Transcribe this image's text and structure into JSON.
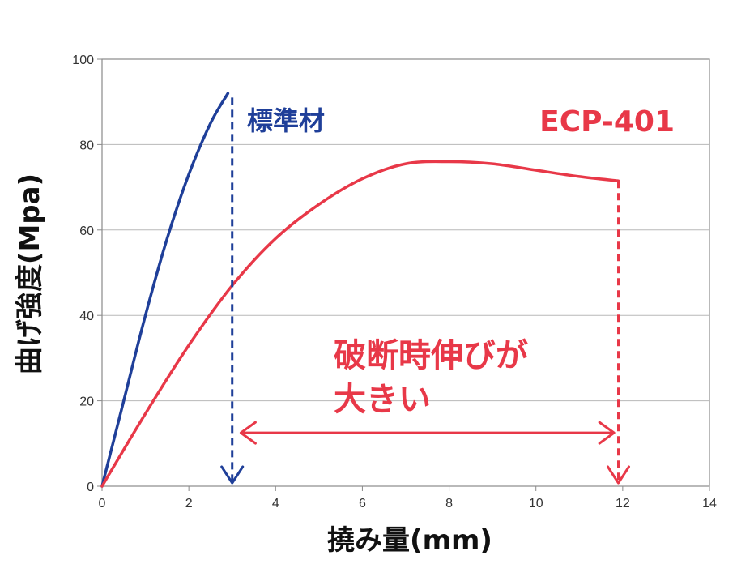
{
  "chart_data": {
    "type": "line",
    "xlabel": "撓み量(mm)",
    "ylabel": "曲げ強度(Mpa)",
    "xlim": [
      0,
      14
    ],
    "ylim": [
      0,
      100
    ],
    "xticks": [
      0,
      2,
      4,
      6,
      8,
      10,
      12,
      14
    ],
    "yticks": [
      0,
      20,
      40,
      60,
      80,
      100
    ],
    "grid": true,
    "series": [
      {
        "name": "標準材",
        "color": "#1f3f99",
        "x": [
          0,
          0.5,
          1.0,
          1.5,
          2.0,
          2.5,
          2.9
        ],
        "y": [
          0,
          20,
          40,
          58,
          73,
          85,
          92
        ]
      },
      {
        "name": "ECP-401",
        "color": "#e83848",
        "x": [
          0,
          1,
          2,
          3,
          4,
          5,
          6,
          7,
          8,
          9,
          10,
          11,
          11.9
        ],
        "y": [
          0,
          17,
          33,
          47,
          58,
          66,
          72,
          75.5,
          76,
          75.5,
          74,
          72.5,
          71.5
        ]
      }
    ],
    "annotations": {
      "standard_break_x": 3.0,
      "ecp_break_x": 11.9,
      "arrow_from_x": 3.2,
      "arrow_to_x": 11.8,
      "arrow_y": 12.5,
      "text_line1": "破断時伸びが",
      "text_line2": "大きい"
    },
    "colors": {
      "blue": "#1f3f99",
      "red": "#e83848",
      "grid": "#b8b8b8",
      "axis": "#8a8a8a"
    }
  }
}
